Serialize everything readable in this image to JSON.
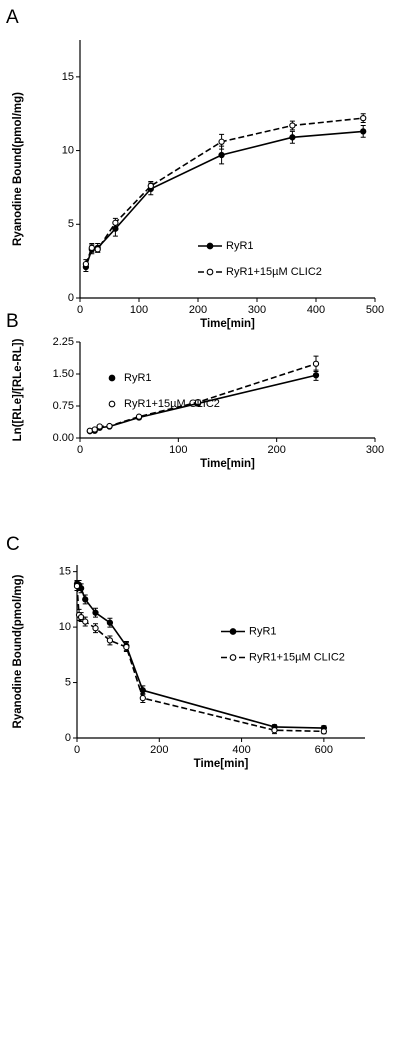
{
  "chart_data": [
    {
      "type": "line",
      "panel": "A",
      "xlabel": "Time[min]",
      "ylabel": "Ryanodine Bound(pmol/mg)",
      "x": [
        10,
        20,
        30,
        60,
        120,
        240,
        360,
        480
      ],
      "series": [
        {
          "name": "RyR1",
          "color": "#000000",
          "marker": "filled",
          "dash": false,
          "values": [
            2.1,
            3.3,
            3.4,
            4.7,
            7.4,
            9.7,
            10.9,
            11.3
          ],
          "errors": [
            0.3,
            0.3,
            0.3,
            0.5,
            0.4,
            0.6,
            0.4,
            0.4
          ]
        },
        {
          "name": "RyR1+15µM CLIC2",
          "color": "#000000",
          "marker": "open",
          "dash": true,
          "values": [
            2.3,
            3.4,
            3.3,
            5.1,
            7.6,
            10.6,
            11.7,
            12.2
          ],
          "errors": [
            0.3,
            0.3,
            0.2,
            0.3,
            0.3,
            0.5,
            0.3,
            0.3
          ]
        }
      ],
      "xlim": [
        0,
        500
      ],
      "xticks": [
        0,
        100,
        200,
        300,
        400,
        500
      ],
      "ylim": [
        0,
        17.5
      ],
      "yticks": [
        0,
        5,
        10,
        15
      ],
      "legend": "lower right",
      "legend_lines": true
    },
    {
      "type": "line",
      "panel": "B",
      "xlabel": "Time[min]",
      "ylabel": "Ln([RLe]/[RLe-RL])",
      "x": [
        10,
        15,
        20,
        30,
        60,
        120,
        240
      ],
      "series": [
        {
          "name": "RyR1",
          "color": "#000000",
          "marker": "filled",
          "dash": false,
          "values": [
            0.16,
            0.17,
            0.24,
            0.27,
            0.48,
            0.81,
            1.47
          ],
          "errors": [
            0.02,
            0.02,
            0.02,
            0.02,
            0.04,
            0.06,
            0.12
          ]
        },
        {
          "name": "RyR1+15µM CLIC2",
          "color": "#000000",
          "marker": "open",
          "dash": true,
          "values": [
            0.17,
            0.2,
            0.27,
            0.28,
            0.5,
            0.84,
            1.74
          ],
          "errors": [
            0.02,
            0.02,
            0.02,
            0.02,
            0.03,
            0.05,
            0.18
          ]
        }
      ],
      "xlim": [
        0,
        300
      ],
      "xticks": [
        0,
        100,
        200,
        300
      ],
      "ylim": [
        0,
        2.25
      ],
      "yticks": [
        {
          "value": 0,
          "label": "0.00"
        },
        {
          "value": 0.75,
          "label": "0.75"
        },
        {
          "value": 1.5,
          "label": "1.50"
        },
        {
          "value": 2.25,
          "label": "2.25"
        }
      ],
      "legend": "upper left",
      "legend_lines": false
    },
    {
      "type": "line",
      "panel": "C",
      "xlabel": "Time[min]",
      "ylabel": "Ryanodine Bound(pmol/mg)",
      "x": [
        0,
        5,
        10,
        20,
        45,
        80,
        120,
        160,
        480,
        600
      ],
      "series": [
        {
          "name": "RyR1",
          "color": "#000000",
          "marker": "filled",
          "dash": false,
          "values": [
            13.9,
            13.8,
            13.5,
            12.5,
            11.3,
            10.4,
            8.3,
            4.3,
            1.0,
            0.9
          ],
          "errors": [
            0.3,
            0.4,
            0.4,
            0.4,
            0.4,
            0.4,
            0.4,
            0.4,
            0.2,
            0.2
          ]
        },
        {
          "name": "RyR1+15µM CLIC2",
          "color": "#000000",
          "marker": "open",
          "dash": true,
          "values": [
            13.7,
            11.1,
            10.9,
            10.5,
            9.9,
            8.8,
            8.2,
            3.6,
            0.7,
            0.6
          ],
          "errors": [
            0.4,
            0.5,
            0.4,
            0.4,
            0.4,
            0.4,
            0.4,
            0.4,
            0.3,
            0.2
          ]
        }
      ],
      "xlim": [
        0,
        700
      ],
      "xticks": [
        0,
        200,
        400,
        600
      ],
      "ylim": [
        0,
        15.6
      ],
      "yticks": [
        0,
        5,
        10,
        15
      ],
      "legend": "center right",
      "legend_lines": true
    }
  ]
}
